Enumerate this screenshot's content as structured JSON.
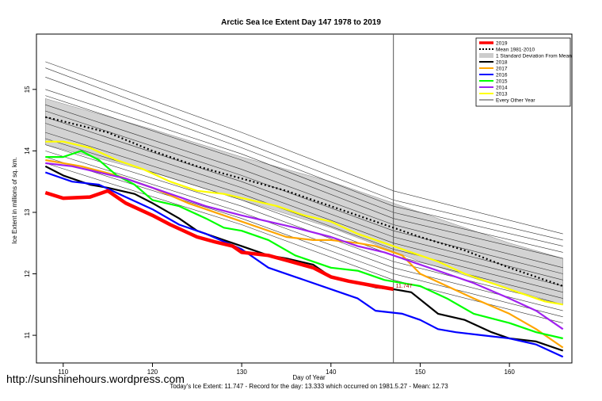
{
  "chart_data": {
    "type": "line",
    "title": "Arctic Sea Ice Extent Day 147 1978 to 2019",
    "xlabel": "Day of Year",
    "ylabel": "Ice Extent in millions of sq. km.",
    "xlim": [
      107,
      167
    ],
    "ylim": [
      10.55,
      15.9
    ],
    "x_ticks": [
      110,
      120,
      130,
      140,
      150,
      160
    ],
    "y_ticks": [
      11,
      12,
      13,
      14,
      15
    ],
    "current_day": 147,
    "current_value_label": "11.747",
    "footer": "Today's Ice Extent: 11.747  - Record for the day: 13.333 which occurred on 1981.5.27  - Mean: 12.73",
    "legend_position": "top-right",
    "legend": [
      {
        "label": "2019",
        "color": "#ff0000",
        "style": "thick"
      },
      {
        "label": "Mean 1981-2010",
        "color": "#000000",
        "style": "dotted"
      },
      {
        "label": "1 Standard Deviation From Mean",
        "color": "#cccccc",
        "style": "band"
      },
      {
        "label": "2018",
        "color": "#000000",
        "style": "solid"
      },
      {
        "label": "2017",
        "color": "#ffa500",
        "style": "solid"
      },
      {
        "label": "2016",
        "color": "#0000ff",
        "style": "solid"
      },
      {
        "label": "2015",
        "color": "#00ff00",
        "style": "solid"
      },
      {
        "label": "2014",
        "color": "#a020f0",
        "style": "solid"
      },
      {
        "label": "2013",
        "color": "#ffff00",
        "style": "solid"
      },
      {
        "label": "Every Other Year",
        "color": "#000000",
        "style": "thin"
      }
    ],
    "mean": {
      "x": [
        108,
        110,
        115,
        120,
        125,
        130,
        135,
        140,
        145,
        150,
        155,
        160,
        166
      ],
      "values": [
        14.55,
        14.48,
        14.3,
        14.0,
        13.75,
        13.55,
        13.35,
        13.1,
        12.85,
        12.6,
        12.38,
        12.1,
        11.8
      ]
    },
    "std_band": {
      "x": [
        108,
        120,
        130,
        140,
        150,
        160,
        166
      ],
      "upper": [
        14.85,
        14.35,
        13.9,
        13.5,
        13.0,
        12.5,
        12.25
      ],
      "lower": [
        14.1,
        13.65,
        13.2,
        12.75,
        12.2,
        11.75,
        11.5
      ]
    },
    "series": [
      {
        "name": "2019",
        "color": "#ff0000",
        "x": [
          108,
          110,
          113,
          115,
          117,
          120,
          122,
          125,
          127,
          129,
          130,
          133,
          135,
          138,
          140,
          142,
          145,
          147
        ],
        "values": [
          13.32,
          13.23,
          13.25,
          13.35,
          13.15,
          12.95,
          12.8,
          12.6,
          12.52,
          12.45,
          12.35,
          12.3,
          12.22,
          12.1,
          11.95,
          11.88,
          11.8,
          11.75
        ]
      },
      {
        "name": "2018",
        "color": "#000000",
        "x": [
          108,
          110,
          113,
          115,
          118,
          120,
          123,
          125,
          128,
          130,
          133,
          135,
          138,
          140,
          143,
          145,
          147,
          149,
          152,
          155,
          158,
          160,
          163,
          166
        ],
        "values": [
          13.75,
          13.6,
          13.45,
          13.4,
          13.3,
          13.15,
          12.9,
          12.7,
          12.55,
          12.45,
          12.3,
          12.25,
          12.15,
          11.95,
          11.85,
          11.78,
          11.75,
          11.7,
          11.35,
          11.25,
          11.05,
          10.95,
          10.9,
          10.75
        ]
      },
      {
        "name": "2017",
        "color": "#ffa500",
        "x": [
          108,
          112,
          116,
          120,
          124,
          128,
          132,
          135,
          138,
          140,
          143,
          145,
          148,
          150,
          153,
          156,
          160,
          163,
          166
        ],
        "values": [
          13.85,
          13.75,
          13.6,
          13.4,
          13.15,
          12.95,
          12.75,
          12.6,
          12.55,
          12.55,
          12.5,
          12.45,
          12.3,
          12.0,
          11.8,
          11.6,
          11.35,
          11.1,
          10.8
        ]
      },
      {
        "name": "2016",
        "color": "#0000ff",
        "x": [
          108,
          111,
          114,
          117,
          120,
          123,
          126,
          130,
          133,
          136,
          140,
          143,
          145,
          148,
          150,
          152,
          154,
          157,
          160,
          163,
          166
        ],
        "values": [
          13.65,
          13.5,
          13.45,
          13.25,
          13.05,
          12.8,
          12.65,
          12.4,
          12.1,
          11.95,
          11.75,
          11.6,
          11.4,
          11.35,
          11.25,
          11.1,
          11.05,
          11.0,
          10.95,
          10.85,
          10.65
        ]
      },
      {
        "name": "2015",
        "color": "#00ff00",
        "x": [
          108,
          110,
          112,
          114,
          116,
          118,
          120,
          123,
          126,
          128,
          130,
          133,
          136,
          140,
          143,
          146,
          150,
          153,
          156,
          160,
          163,
          166
        ],
        "values": [
          13.9,
          13.9,
          14.0,
          13.85,
          13.6,
          13.45,
          13.2,
          13.1,
          12.9,
          12.75,
          12.7,
          12.55,
          12.3,
          12.1,
          12.05,
          11.9,
          11.8,
          11.6,
          11.35,
          11.2,
          11.05,
          10.95
        ]
      },
      {
        "name": "2014",
        "color": "#a020f0",
        "x": [
          108,
          111,
          114,
          117,
          120,
          123,
          126,
          130,
          133,
          136,
          140,
          143,
          146,
          150,
          153,
          156,
          160,
          163,
          166
        ],
        "values": [
          13.8,
          13.75,
          13.65,
          13.55,
          13.4,
          13.25,
          13.1,
          12.95,
          12.85,
          12.75,
          12.6,
          12.45,
          12.35,
          12.15,
          12.0,
          11.85,
          11.6,
          11.4,
          11.1
        ]
      },
      {
        "name": "2013",
        "color": "#ffff00",
        "x": [
          108,
          110,
          113,
          116,
          119,
          122,
          125,
          128,
          131,
          134,
          137,
          140,
          143,
          146,
          149,
          152,
          155,
          158,
          161,
          164,
          166
        ],
        "values": [
          14.15,
          14.15,
          14.05,
          13.85,
          13.7,
          13.5,
          13.35,
          13.3,
          13.2,
          13.1,
          12.95,
          12.85,
          12.65,
          12.5,
          12.35,
          12.2,
          12.0,
          11.85,
          11.7,
          11.55,
          11.5
        ]
      }
    ],
    "other_years": [
      {
        "x": [
          108,
          130,
          147,
          166
        ],
        "values": [
          15.45,
          14.3,
          13.35,
          12.65
        ]
      },
      {
        "x": [
          108,
          130,
          147,
          166
        ],
        "values": [
          15.35,
          14.15,
          13.2,
          12.55
        ]
      },
      {
        "x": [
          108,
          130,
          147,
          166
        ],
        "values": [
          15.2,
          14.05,
          13.1,
          12.45
        ]
      },
      {
        "x": [
          108,
          130,
          147,
          166
        ],
        "values": [
          15.0,
          13.95,
          13.0,
          12.35
        ]
      },
      {
        "x": [
          108,
          130,
          147,
          166
        ],
        "values": [
          14.9,
          13.85,
          12.9,
          12.25
        ]
      },
      {
        "x": [
          108,
          130,
          147,
          166
        ],
        "values": [
          14.75,
          13.7,
          12.8,
          12.1
        ]
      },
      {
        "x": [
          108,
          130,
          147,
          166
        ],
        "values": [
          14.65,
          13.6,
          12.7,
          12.0
        ]
      },
      {
        "x": [
          108,
          130,
          147,
          166
        ],
        "values": [
          14.55,
          13.5,
          12.6,
          11.9
        ]
      },
      {
        "x": [
          108,
          130,
          147,
          166
        ],
        "values": [
          14.45,
          13.4,
          12.5,
          11.8
        ]
      },
      {
        "x": [
          108,
          130,
          147,
          166
        ],
        "values": [
          14.3,
          13.3,
          12.4,
          11.7
        ]
      },
      {
        "x": [
          108,
          130,
          147,
          166
        ],
        "values": [
          14.2,
          13.2,
          12.3,
          11.6
        ]
      },
      {
        "x": [
          108,
          130,
          147,
          166
        ],
        "values": [
          14.1,
          13.1,
          12.2,
          11.5
        ]
      },
      {
        "x": [
          108,
          130,
          147,
          166
        ],
        "values": [
          14.0,
          13.0,
          12.1,
          11.4
        ]
      },
      {
        "x": [
          108,
          130,
          147,
          166
        ],
        "values": [
          13.9,
          12.9,
          12.0,
          11.3
        ]
      },
      {
        "x": [
          108,
          130,
          147,
          166
        ],
        "values": [
          13.8,
          12.8,
          11.9,
          11.2
        ]
      }
    ]
  },
  "watermark": "http://sunshinehours.wordpress.com"
}
